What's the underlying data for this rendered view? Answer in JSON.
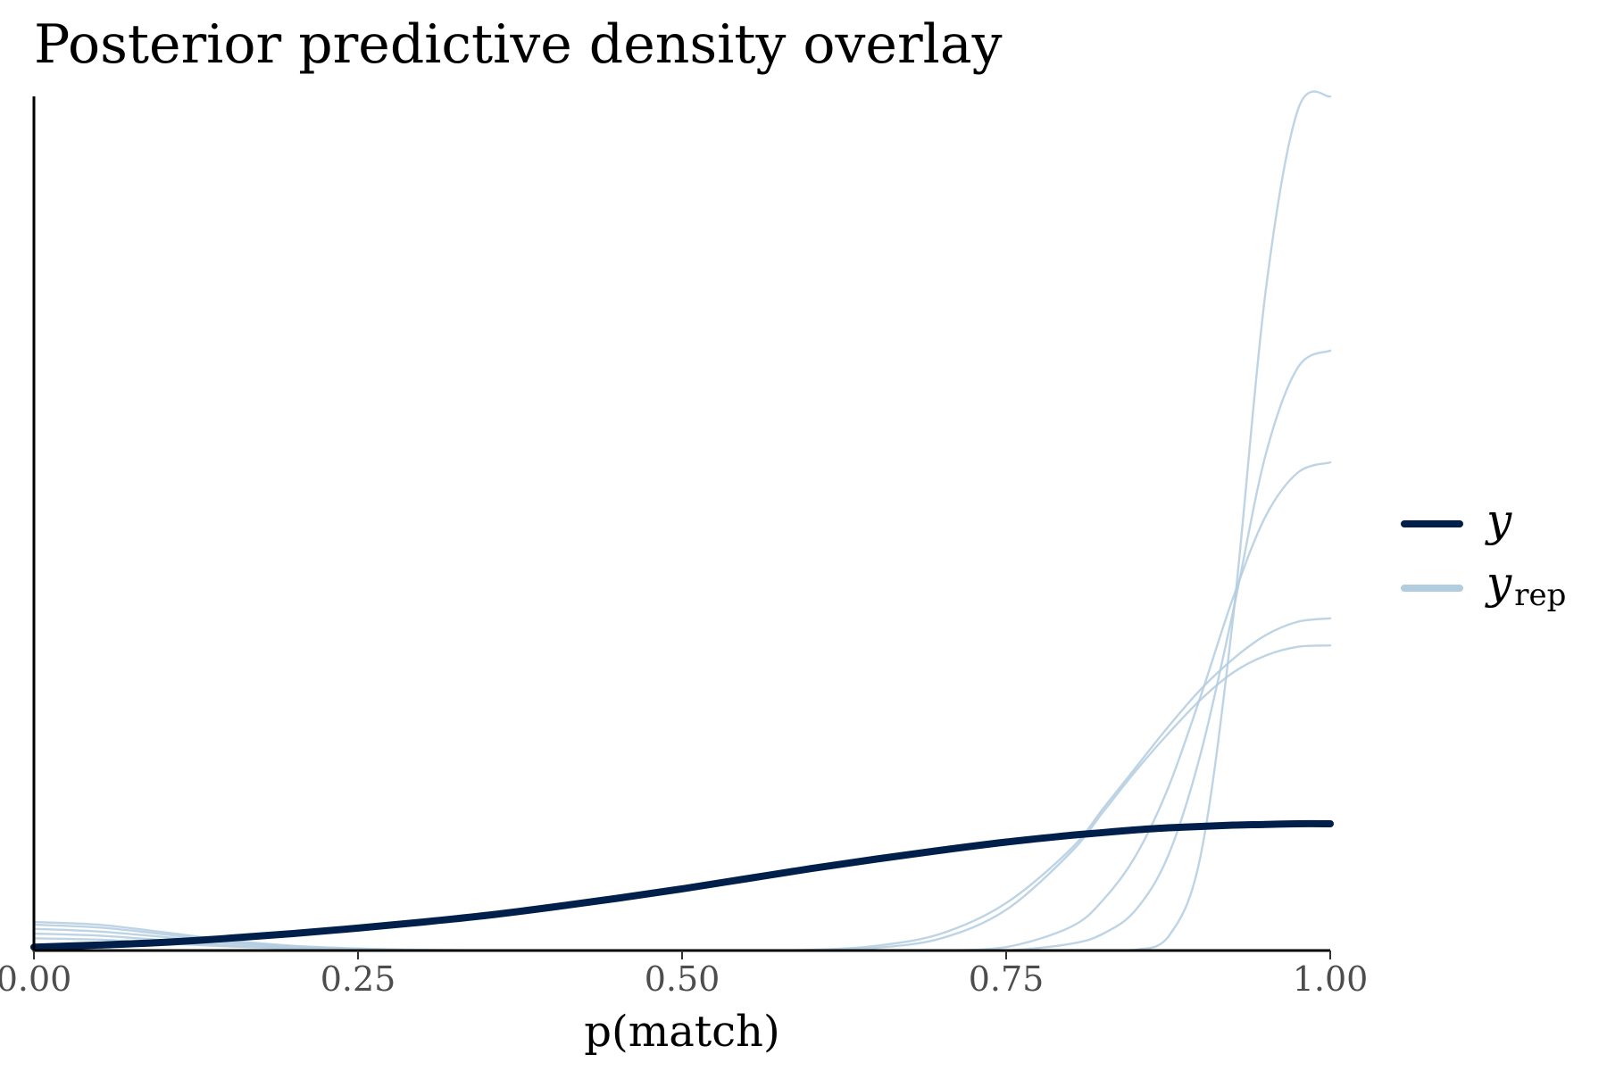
{
  "chart_data": {
    "type": "line",
    "title": "Posterior predictive density overlay",
    "xlabel": "p(match)",
    "ylabel": "",
    "xlim": [
      0,
      1
    ],
    "ylim": [
      0,
      12.6
    ],
    "x_ticks": [
      0,
      0.25,
      0.5,
      0.75,
      1.0
    ],
    "x_tick_labels": [
      "0.00",
      "0.25",
      "0.50",
      "0.75",
      "1.00"
    ],
    "y_axis_ticks_shown": false,
    "grid": false,
    "legend": {
      "placement": "right",
      "entries": [
        {
          "symbol": "y",
          "subscript": "",
          "color": "#011f4b"
        },
        {
          "symbol": "y",
          "subscript": "rep",
          "color": "#b3cde0"
        }
      ]
    },
    "x": [
      0,
      0.05,
      0.1,
      0.15,
      0.2,
      0.25,
      0.3,
      0.35,
      0.4,
      0.45,
      0.5,
      0.55,
      0.6,
      0.65,
      0.7,
      0.75,
      0.8,
      0.825,
      0.85,
      0.875,
      0.9,
      0.925,
      0.95,
      0.975,
      1.0
    ],
    "series": [
      {
        "role": "y",
        "color": "#011f4b",
        "values": [
          0.05,
          0.08,
          0.12,
          0.18,
          0.25,
          0.33,
          0.42,
          0.52,
          0.64,
          0.77,
          0.91,
          1.06,
          1.21,
          1.35,
          1.48,
          1.6,
          1.7,
          1.74,
          1.78,
          1.81,
          1.83,
          1.85,
          1.86,
          1.87,
          1.87
        ]
      },
      {
        "role": "y_rep",
        "color": "#b3cde0",
        "values": [
          0.25,
          0.22,
          0.15,
          0.08,
          0.04,
          0.02,
          0.0,
          0.0,
          0.0,
          0.0,
          0.0,
          0.0,
          0.0,
          0.0,
          0.0,
          0.0,
          0.0,
          0.0,
          0.01,
          0.2,
          1.4,
          4.9,
          9.7,
          12.4,
          12.6
        ]
      },
      {
        "role": "y_rep",
        "color": "#b3cde0",
        "values": [
          0.18,
          0.16,
          0.11,
          0.06,
          0.03,
          0.01,
          0.0,
          0.0,
          0.0,
          0.0,
          0.0,
          0.0,
          0.0,
          0.0,
          0.0,
          0.0,
          0.1,
          0.25,
          0.6,
          1.4,
          2.9,
          5.0,
          7.3,
          8.6,
          8.85
        ]
      },
      {
        "role": "y_rep",
        "color": "#b3cde0",
        "values": [
          0.32,
          0.28,
          0.2,
          0.11,
          0.05,
          0.02,
          0.0,
          0.0,
          0.0,
          0.0,
          0.0,
          0.0,
          0.0,
          0.0,
          0.0,
          0.05,
          0.35,
          0.75,
          1.4,
          2.4,
          3.75,
          5.2,
          6.4,
          7.05,
          7.2
        ]
      },
      {
        "role": "y_rep",
        "color": "#b3cde0",
        "values": [
          0.42,
          0.38,
          0.27,
          0.15,
          0.07,
          0.03,
          0.01,
          0.0,
          0.0,
          0.0,
          0.0,
          0.0,
          0.01,
          0.07,
          0.25,
          0.7,
          1.5,
          2.1,
          2.7,
          3.3,
          3.85,
          4.3,
          4.65,
          4.85,
          4.9
        ]
      },
      {
        "role": "y_rep",
        "color": "#b3cde0",
        "values": [
          0.38,
          0.34,
          0.24,
          0.13,
          0.06,
          0.02,
          0.0,
          0.0,
          0.0,
          0.0,
          0.0,
          0.0,
          0.0,
          0.04,
          0.18,
          0.6,
          1.45,
          2.05,
          2.65,
          3.2,
          3.7,
          4.1,
          4.35,
          4.48,
          4.5
        ]
      }
    ]
  }
}
